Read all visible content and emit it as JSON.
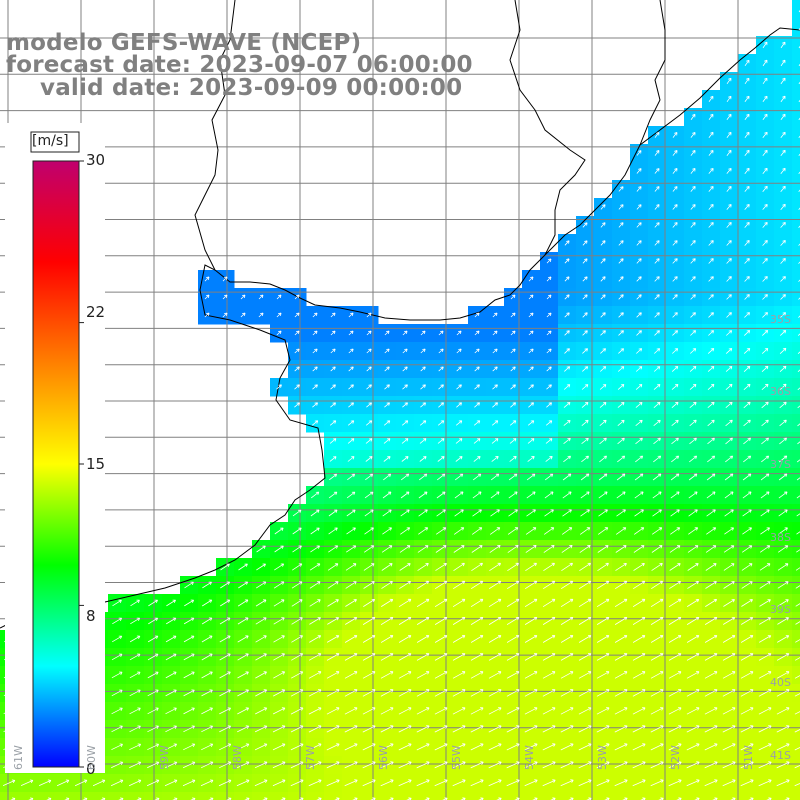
{
  "title": {
    "line1": "modelo GEFS-WAVE (NCEP)",
    "line2": "forecast date: 2023-09-07 06:00:00",
    "line3": "valid date: 2023-09-09 00:00:00"
  },
  "colorbar": {
    "unit": "[m/s]",
    "min": 0,
    "max": 30,
    "ticks": [
      "30",
      "22",
      "15",
      "8",
      "0"
    ],
    "tick_values": [
      30,
      22,
      15,
      8,
      0
    ],
    "colors": [
      "#0000ff",
      "#00ffff",
      "#00ff00",
      "#ffff00",
      "#ff8000",
      "#ff0000",
      "#c0006e"
    ]
  },
  "lat_labels": [
    "35S",
    "36S",
    "37S",
    "38S",
    "39S",
    "40S",
    "41S"
  ],
  "lon_labels": [
    "61W",
    "60W",
    "59W",
    "58W",
    "57W",
    "56W",
    "55W",
    "54W",
    "53W",
    "52W",
    "51W"
  ],
  "colors": {
    "land": "#ffffff",
    "grid": "#808080",
    "coast": "#000000",
    "arrow": "#ffffff"
  }
}
